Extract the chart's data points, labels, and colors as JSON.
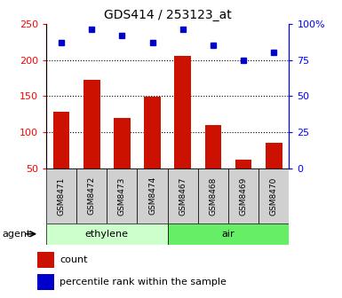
{
  "title": "GDS414 / 253123_at",
  "categories": [
    "GSM8471",
    "GSM8472",
    "GSM8473",
    "GSM8474",
    "GSM8467",
    "GSM8468",
    "GSM8469",
    "GSM8470"
  ],
  "counts": [
    128,
    172,
    120,
    149,
    206,
    110,
    62,
    85
  ],
  "percentiles": [
    87,
    96,
    92,
    87,
    96,
    85,
    75,
    80
  ],
  "groups": [
    {
      "label": "ethylene",
      "span": [
        0,
        4
      ],
      "color": "#ccffcc"
    },
    {
      "label": "air",
      "span": [
        4,
        8
      ],
      "color": "#66ee66"
    }
  ],
  "ylim_left": [
    50,
    250
  ],
  "ylim_right": [
    0,
    100
  ],
  "yticks_left": [
    50,
    100,
    150,
    200,
    250
  ],
  "yticks_right": [
    0,
    25,
    50,
    75,
    100
  ],
  "ytick_labels_right": [
    "0",
    "25",
    "50",
    "75",
    "100%"
  ],
  "bar_color": "#cc1100",
  "percentile_color": "#0000cc",
  "bar_width": 0.55,
  "agent_label": "agent",
  "legend_count_label": "count",
  "legend_percentile_label": "percentile rank within the sample",
  "xtick_bg": "#d0d0d0"
}
